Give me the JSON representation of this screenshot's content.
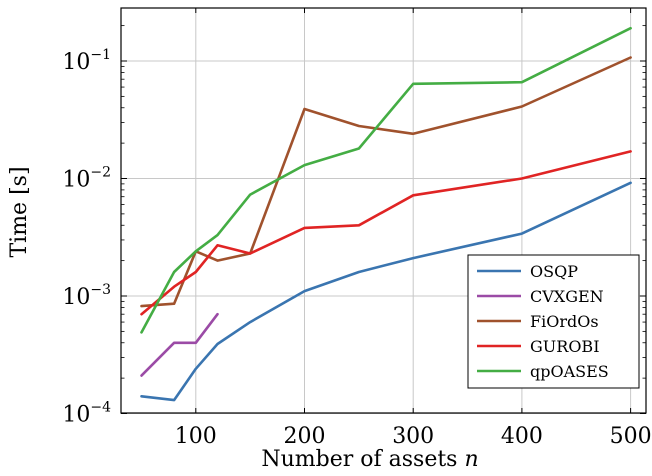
{
  "chart_data": {
    "type": "line",
    "title": "",
    "xlabel": "Number of assets",
    "xlabel_var": "n",
    "ylabel": "Time [s]",
    "xlim": [
      30,
      505
    ],
    "ylim": [
      0.0001,
      0.3
    ],
    "y_scale": "log",
    "grid": true,
    "legend_position": "bottom-right",
    "x_ticks": [
      100,
      200,
      300,
      400,
      500
    ],
    "x_tick_labels": [
      "100",
      "200",
      "300",
      "400",
      "500"
    ],
    "y_ticks": [
      0.0001,
      0.001,
      0.01,
      0.1
    ],
    "y_tick_labels": [
      {
        "base": "10",
        "exp": "−4"
      },
      {
        "base": "10",
        "exp": "−3"
      },
      {
        "base": "10",
        "exp": "−2"
      },
      {
        "base": "10",
        "exp": "−1"
      }
    ],
    "series": [
      {
        "name": "OSQP",
        "color": "#3a75b0",
        "x": [
          50,
          80,
          100,
          120,
          150,
          200,
          250,
          300,
          400,
          500
        ],
        "y": [
          0.00014,
          0.00013,
          0.00024,
          0.00039,
          0.0006,
          0.0011,
          0.0016,
          0.0021,
          0.0034,
          0.0092
        ]
      },
      {
        "name": "CVXGEN",
        "color": "#9b4ba6",
        "x": [
          50,
          80,
          100,
          120
        ],
        "y": [
          0.00021,
          0.0004,
          0.0004,
          0.0007
        ]
      },
      {
        "name": "FiOrdOs",
        "color": "#a0522d",
        "x": [
          50,
          80,
          100,
          120,
          150,
          200,
          250,
          300,
          400,
          500
        ],
        "y": [
          0.00082,
          0.00086,
          0.0024,
          0.002,
          0.0023,
          0.039,
          0.028,
          0.024,
          0.041,
          0.107
        ]
      },
      {
        "name": "GUROBI",
        "color": "#e02424",
        "x": [
          50,
          80,
          100,
          120,
          150,
          200,
          250,
          300,
          400,
          500
        ],
        "y": [
          0.0007,
          0.0012,
          0.0016,
          0.0027,
          0.0023,
          0.0038,
          0.004,
          0.0072,
          0.01,
          0.017
        ]
      },
      {
        "name": "qpOASES",
        "color": "#44ad44",
        "x": [
          50,
          80,
          100,
          120,
          150,
          200,
          250,
          300,
          400,
          500
        ],
        "y": [
          0.00049,
          0.0016,
          0.0024,
          0.0033,
          0.0073,
          0.013,
          0.018,
          0.064,
          0.066,
          0.19
        ]
      }
    ]
  }
}
